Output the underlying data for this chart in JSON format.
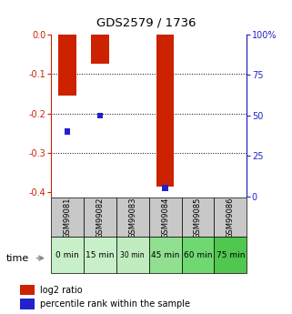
{
  "title": "GDS2579 / 1736",
  "samples": [
    "GSM99081",
    "GSM99082",
    "GSM99083",
    "GSM99084",
    "GSM99085",
    "GSM99086"
  ],
  "time_labels": [
    "0 min",
    "15 min",
    "30 min",
    "45 min",
    "60 min",
    "75 min"
  ],
  "time_colors": [
    "#c8f0c8",
    "#c8f0c8",
    "#c0ecc0",
    "#90e090",
    "#70d870",
    "#50c850"
  ],
  "log2_ratio": [
    -0.155,
    -0.075,
    0.0,
    -0.385,
    0.0,
    0.0
  ],
  "percentile_rank": [
    40,
    50,
    0,
    5,
    0,
    0
  ],
  "ylim_left": [
    -0.41,
    0.0
  ],
  "ylim_right": [
    0,
    100
  ],
  "yticks_left": [
    0.0,
    -0.1,
    -0.2,
    -0.3,
    -0.4
  ],
  "yticks_right": [
    0,
    25,
    50,
    75,
    100
  ],
  "log2_color": "#cc2200",
  "percentile_color": "#2222cc",
  "sample_bg_color": "#c8c8c8",
  "legend_log2": "log2 ratio",
  "legend_pct": "percentile rank within the sample"
}
